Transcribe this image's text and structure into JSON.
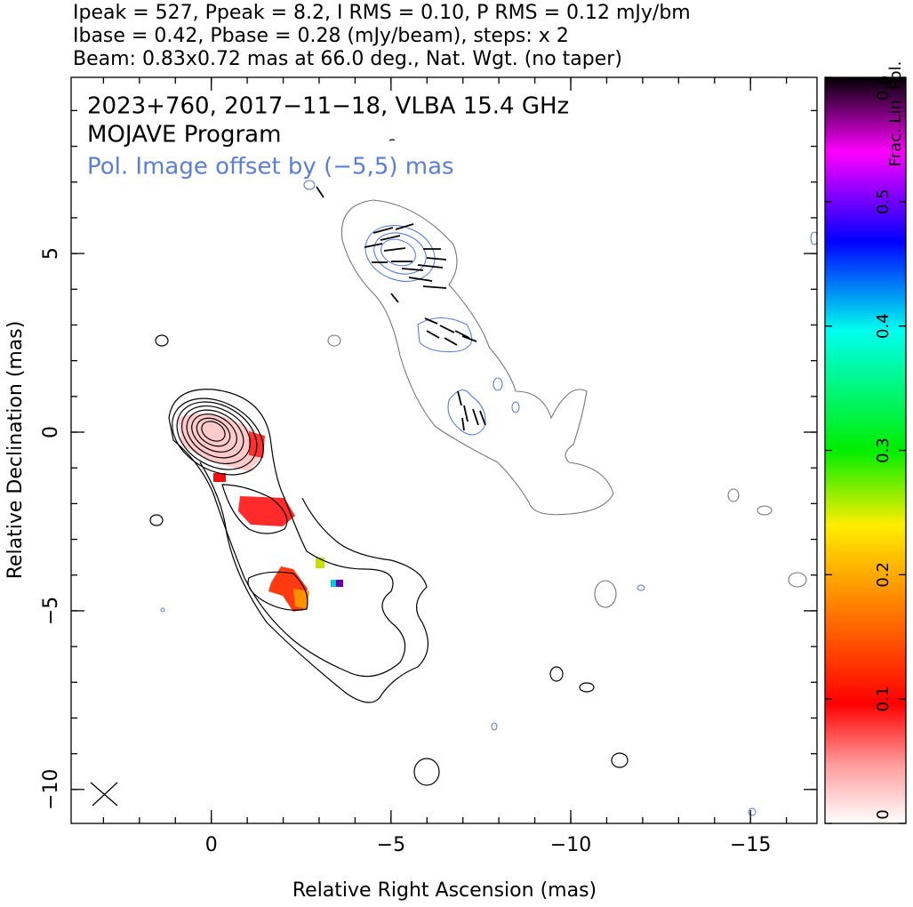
{
  "chart_data": {
    "type": "contour",
    "header": [
      "Ipeak = 527, Ppeak = 8.2, I RMS = 0.10, P RMS = 0.12 mJy/bm",
      "Ibase = 0.42, Pbase = 0.28 (mJy/beam), steps: x 2",
      "Beam: 0.83x0.72 mas at 66.0 deg., Nat. Wgt. (no taper)"
    ],
    "annotations": [
      "2023+760, 2017−11−18, VLBA 15.4 GHz",
      "MOJAVE Program",
      "Pol. Image offset by (−5,5) mas"
    ],
    "annotation_color": "#5a7fd6",
    "xlabel": "Relative Right Ascension (mas)",
    "ylabel": "Relative Declination (mas)",
    "xlim": [
      3.9,
      -16.85
    ],
    "ylim": [
      -10.95,
      9.93
    ],
    "xticks": [
      0,
      {
        "value": -5,
        "label": "−5"
      },
      {
        "value": -10,
        "label": "−10"
      },
      {
        "value": -15,
        "label": "−15"
      }
    ],
    "yticks": [
      5,
      0,
      {
        "value": -5,
        "label": "−5"
      },
      {
        "value": -10,
        "label": "−10"
      }
    ],
    "colorbar": {
      "label": "Frac. Lin. Pol.",
      "lim": [
        0,
        0.6
      ],
      "ticks": [
        0,
        0.1,
        0.2,
        0.3,
        0.4,
        0.5,
        0.6
      ]
    }
  }
}
